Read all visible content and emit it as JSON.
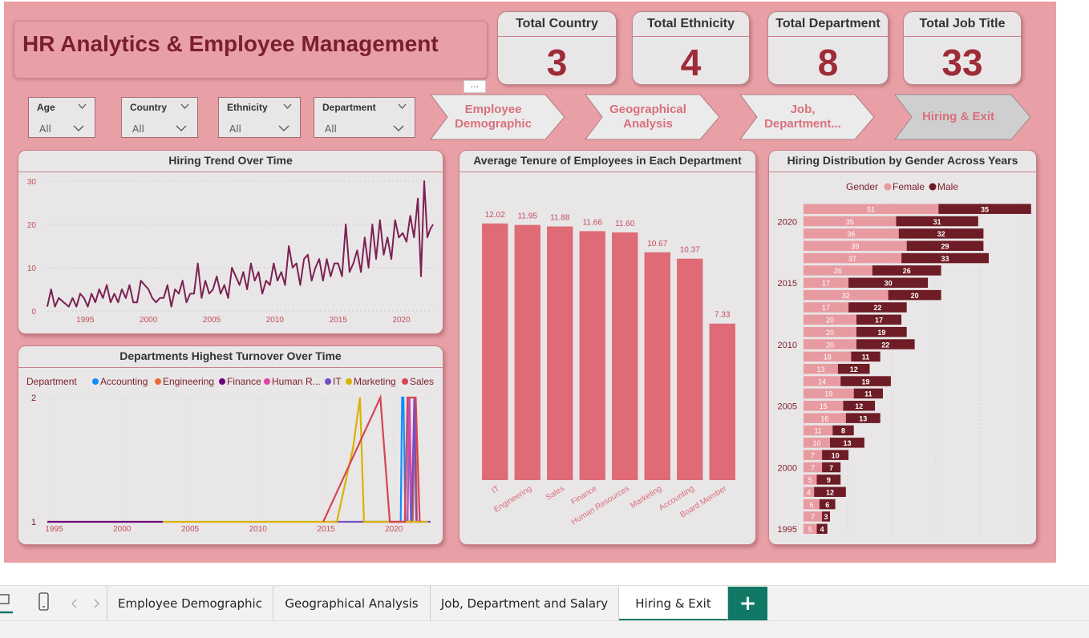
{
  "header": {
    "title": "HR Analytics & Employee Management",
    "more": "..."
  },
  "kpis": [
    {
      "label": "Total Country",
      "value": "3"
    },
    {
      "label": "Total Ethnicity",
      "value": "4"
    },
    {
      "label": "Total Department",
      "value": "8"
    },
    {
      "label": "Total Job Title",
      "value": "33"
    }
  ],
  "slicers": [
    {
      "label": "Age",
      "value": "All"
    },
    {
      "label": "Country",
      "value": "All"
    },
    {
      "label": "Ethnicity",
      "value": "All"
    },
    {
      "label": "Department",
      "value": "All"
    }
  ],
  "nav_buttons": [
    {
      "label": "Employee Demographic",
      "active": false
    },
    {
      "label": "Geographical Analysis",
      "active": false
    },
    {
      "label": "Job, Department...",
      "active": false
    },
    {
      "label": "Hiring & Exit",
      "active": true
    }
  ],
  "colors": {
    "background": "#e8a0a6",
    "panel": "#e9e6e7",
    "accent": "#9d2b38",
    "line": "#7b2153",
    "bar": "#df6b76",
    "female": "#e89aa1",
    "male": "#6e1c26",
    "tab_active": "#117865"
  },
  "chart_data": [
    {
      "id": "hiring_trend",
      "type": "line",
      "title": "Hiring Trend Over Time",
      "xlabel": "",
      "ylabel": "",
      "x_ticks": [
        1995,
        2000,
        2005,
        2010,
        2015,
        2020
      ],
      "y_ticks": [
        0,
        10,
        20,
        30
      ],
      "xlim": [
        1992,
        2022.5
      ],
      "ylim": [
        0,
        30
      ],
      "series": [
        {
          "values": [
            [
              1992.0,
              1
            ],
            [
              1992.3,
              5
            ],
            [
              1992.6,
              1
            ],
            [
              1992.9,
              3
            ],
            [
              1993.3,
              2
            ],
            [
              1993.7,
              1
            ],
            [
              1994.0,
              3
            ],
            [
              1994.3,
              1
            ],
            [
              1994.6,
              4
            ],
            [
              1994.9,
              3
            ],
            [
              1995.2,
              1
            ],
            [
              1995.5,
              4
            ],
            [
              1995.8,
              2
            ],
            [
              1996.1,
              5
            ],
            [
              1996.4,
              3
            ],
            [
              1996.7,
              6
            ],
            [
              1997.0,
              2
            ],
            [
              1997.3,
              4
            ],
            [
              1997.6,
              2
            ],
            [
              1997.9,
              5
            ],
            [
              1998.2,
              3
            ],
            [
              1998.5,
              6
            ],
            [
              1998.8,
              2
            ],
            [
              1999.1,
              2
            ],
            [
              1999.4,
              7
            ],
            [
              1999.7,
              6
            ],
            [
              2000.0,
              5
            ],
            [
              2000.3,
              3
            ],
            [
              2000.6,
              2
            ],
            [
              2000.9,
              3
            ],
            [
              2001.2,
              3
            ],
            [
              2001.5,
              6
            ],
            [
              2001.8,
              1
            ],
            [
              2002.1,
              5
            ],
            [
              2002.4,
              4
            ],
            [
              2002.7,
              7
            ],
            [
              2003.0,
              2
            ],
            [
              2003.3,
              4
            ],
            [
              2003.6,
              4
            ],
            [
              2003.9,
              11
            ],
            [
              2004.2,
              3
            ],
            [
              2004.5,
              7
            ],
            [
              2004.8,
              4
            ],
            [
              2005.1,
              5
            ],
            [
              2005.4,
              8
            ],
            [
              2005.7,
              4
            ],
            [
              2006.0,
              6
            ],
            [
              2006.3,
              3
            ],
            [
              2006.6,
              10
            ],
            [
              2006.9,
              8
            ],
            [
              2007.2,
              6
            ],
            [
              2007.5,
              9
            ],
            [
              2007.8,
              5
            ],
            [
              2008.1,
              11
            ],
            [
              2008.4,
              7
            ],
            [
              2008.7,
              9
            ],
            [
              2009.0,
              4
            ],
            [
              2009.3,
              7
            ],
            [
              2009.6,
              6
            ],
            [
              2009.9,
              11
            ],
            [
              2010.2,
              7
            ],
            [
              2010.5,
              9
            ],
            [
              2010.8,
              6
            ],
            [
              2011.1,
              15
            ],
            [
              2011.4,
              10
            ],
            [
              2011.7,
              11
            ],
            [
              2012.0,
              6
            ],
            [
              2012.3,
              12
            ],
            [
              2012.6,
              13
            ],
            [
              2012.9,
              7
            ],
            [
              2013.2,
              10
            ],
            [
              2013.5,
              12
            ],
            [
              2013.8,
              7
            ],
            [
              2014.1,
              12
            ],
            [
              2014.4,
              8
            ],
            [
              2014.7,
              11
            ],
            [
              2015.0,
              11
            ],
            [
              2015.3,
              8
            ],
            [
              2015.6,
              20
            ],
            [
              2015.9,
              9
            ],
            [
              2016.2,
              11
            ],
            [
              2016.5,
              14
            ],
            [
              2016.8,
              9
            ],
            [
              2017.1,
              17
            ],
            [
              2017.4,
              10
            ],
            [
              2017.7,
              20
            ],
            [
              2018.0,
              12
            ],
            [
              2018.3,
              21
            ],
            [
              2018.6,
              13
            ],
            [
              2018.9,
              17
            ],
            [
              2019.2,
              12
            ],
            [
              2019.5,
              21
            ],
            [
              2019.8,
              17
            ],
            [
              2020.1,
              18
            ],
            [
              2020.4,
              16
            ],
            [
              2020.7,
              22
            ],
            [
              2021.0,
              17
            ],
            [
              2021.3,
              26
            ],
            [
              2021.55,
              8
            ],
            [
              2021.8,
              30
            ],
            [
              2022.05,
              17
            ],
            [
              2022.3,
              19
            ],
            [
              2022.5,
              20
            ]
          ]
        }
      ]
    },
    {
      "id": "dept_turnover",
      "type": "line",
      "title": "Departments Highest Turnover Over Time",
      "legend_title": "Department",
      "x_ticks": [
        1995,
        2000,
        2005,
        2010,
        2015,
        2020
      ],
      "y_ticks": [
        1,
        2
      ],
      "xlim": [
        1994.5,
        2022.7
      ],
      "ylim": [
        1,
        2
      ],
      "series": [
        {
          "name": "Accounting",
          "color": "#118dff",
          "values": [
            [
              2020.5,
              1
            ],
            [
              2020.6,
              2
            ],
            [
              2020.7,
              2
            ],
            [
              2020.85,
              1
            ],
            [
              2021.0,
              1
            ],
            [
              2021.1,
              2
            ],
            [
              2021.25,
              1
            ]
          ]
        },
        {
          "name": "Engineering",
          "color": "#e66c37",
          "values": [
            [
              2021.4,
              1
            ],
            [
              2021.55,
              2
            ],
            [
              2021.7,
              1
            ]
          ]
        },
        {
          "name": "Finance",
          "color": "#6b007b",
          "values": [
            [
              1994.5,
              1
            ],
            [
              2003.0,
              1
            ]
          ]
        },
        {
          "name": "Human R...",
          "color": "#e044a7",
          "values": [
            [
              2021.0,
              1
            ],
            [
              2021.15,
              2
            ],
            [
              2021.3,
              1
            ]
          ]
        },
        {
          "name": "IT",
          "color": "#744ec2",
          "values": [
            [
              2015.5,
              1
            ],
            [
              2020.0,
              1
            ],
            [
              2021.3,
              1
            ],
            [
              2021.5,
              2
            ],
            [
              2021.65,
              1
            ],
            [
              2022.7,
              1
            ]
          ]
        },
        {
          "name": "Marketing",
          "color": "#d9b300",
          "values": [
            [
              2003.0,
              1
            ],
            [
              2015.8,
              1
            ],
            [
              2017.0,
              1.6
            ],
            [
              2017.5,
              2
            ],
            [
              2017.8,
              1
            ],
            [
              2022.5,
              1
            ]
          ]
        },
        {
          "name": "Sales",
          "color": "#d64550",
          "values": [
            [
              2014.8,
              1
            ],
            [
              2019.0,
              2
            ],
            [
              2019.7,
              1
            ],
            [
              2020.8,
              1
            ],
            [
              2021.0,
              2
            ],
            [
              2021.6,
              2
            ],
            [
              2021.9,
              1
            ]
          ]
        }
      ]
    },
    {
      "id": "avg_tenure",
      "type": "bar",
      "title": "Average Tenure of Employees in Each Department",
      "categories": [
        "IT",
        "Engineering",
        "Sales",
        "Finance",
        "Human Resources",
        "Marketing",
        "Accounting",
        "Board Member"
      ],
      "values": [
        12.02,
        11.95,
        11.88,
        11.66,
        11.6,
        10.67,
        10.37,
        7.33
      ],
      "value_labels": [
        "12.02",
        "11.95",
        "11.88",
        "11.66",
        "11.60",
        "10.67",
        "10.37",
        "7.33"
      ],
      "ylim": [
        0,
        12.5
      ]
    },
    {
      "id": "hiring_gender",
      "type": "bar",
      "orientation": "horizontal-stacked",
      "title": "Hiring Distribution by Gender Across Years",
      "legend_title": "Gender",
      "categories": [
        2021,
        2020,
        2019,
        2018,
        2017,
        2016,
        2015,
        2014,
        2013,
        2012,
        2011,
        2010,
        2009,
        2008,
        2007,
        2006,
        2005,
        2004,
        2003,
        2002,
        2001,
        2000,
        1999,
        1998,
        1997,
        1996,
        1995
      ],
      "y_ticks": [
        2020,
        2015,
        2010,
        2005,
        2000,
        1995
      ],
      "series": [
        {
          "name": "Female",
          "color": "#e89aa1",
          "values": [
            51,
            35,
            36,
            39,
            37,
            26,
            17,
            32,
            17,
            20,
            20,
            20,
            18,
            13,
            14,
            19,
            15,
            16,
            11,
            10,
            7,
            7,
            5,
            4,
            6,
            7,
            5
          ]
        },
        {
          "name": "Male",
          "color": "#6e1c26",
          "values": [
            35,
            31,
            32,
            29,
            33,
            26,
            30,
            20,
            22,
            17,
            19,
            22,
            11,
            12,
            19,
            11,
            12,
            13,
            8,
            13,
            10,
            7,
            9,
            12,
            6,
            3,
            4
          ]
        }
      ]
    }
  ],
  "tabs": [
    {
      "label": "Employee Demographic",
      "active": false
    },
    {
      "label": "Geographical Analysis",
      "active": false
    },
    {
      "label": "Job, Department and Salary",
      "active": false
    },
    {
      "label": "Hiring & Exit",
      "active": true
    }
  ],
  "tabbar": {
    "add_label": "+"
  }
}
